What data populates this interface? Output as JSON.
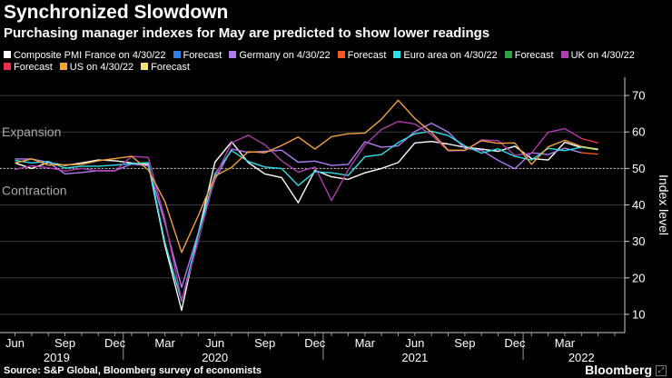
{
  "header": {
    "title": "Synchronized Slowdown",
    "subtitle": "Purchasing manager indexes for May are predicted to show lower readings"
  },
  "footer": {
    "source": "Source: S&P Global, Bloomberg survey of economists",
    "brand": "Bloomberg"
  },
  "icons": {
    "brand_mark": "expand-icon"
  },
  "chart_data": {
    "type": "line",
    "title": "Synchronized Slowdown",
    "subtitle": "Purchasing manager indexes for May are predicted to show lower readings",
    "ylabel": "Index level",
    "ylim": [
      5,
      75
    ],
    "yticks": [
      10,
      20,
      30,
      40,
      50,
      60,
      70
    ],
    "reference_line": 50,
    "annotations": [
      {
        "text": "Expansion",
        "y": 60
      },
      {
        "text": "Contraction",
        "y": 44
      }
    ],
    "x_tick_labels": [
      {
        "label": "Jun",
        "index": 0
      },
      {
        "label": "Sep",
        "index": 3
      },
      {
        "label": "Dec",
        "index": 6
      },
      {
        "label": "Mar",
        "index": 9
      },
      {
        "label": "Jun",
        "index": 12
      },
      {
        "label": "Sep",
        "index": 15
      },
      {
        "label": "Dec",
        "index": 18
      },
      {
        "label": "Mar",
        "index": 21
      },
      {
        "label": "Jun",
        "index": 24
      },
      {
        "label": "Sep",
        "index": 27
      },
      {
        "label": "Dec",
        "index": 30
      },
      {
        "label": "Mar",
        "index": 33
      }
    ],
    "year_labels": [
      {
        "label": "2019",
        "index": 2.5
      },
      {
        "label": "2020",
        "index": 12
      },
      {
        "label": "2021",
        "index": 24
      },
      {
        "label": "2022",
        "index": 34
      }
    ],
    "x_range": [
      -0.9,
      36.6
    ],
    "x_start": "Jun 2019",
    "series": [
      {
        "name": "Composite PMI France on 4/30/22",
        "color": "#ffffff",
        "start": 0,
        "values": [
          51.5,
          50.0,
          51.6,
          50.8,
          51.5,
          52.3,
          52.1,
          51.5,
          51.1,
          28.9,
          11.1,
          32.1,
          51.7,
          57.3,
          51.6,
          48.5,
          47.5,
          40.6,
          49.5,
          47.7,
          47.0,
          48.8,
          50.0,
          51.6,
          57.0,
          57.4,
          56.7,
          55.8,
          55.3,
          54.7,
          56.1,
          52.7,
          52.3,
          57.2,
          55.7
        ]
      },
      {
        "name": "Forecast",
        "color": "#2f7fe6",
        "start": 34,
        "values": [
          55.7,
          55.4
        ]
      },
      {
        "name": "Germany on 4/30/22",
        "color": "#b07af0",
        "start": 0,
        "values": [
          52.6,
          52.6,
          51.7,
          48.5,
          48.9,
          49.4,
          49.4,
          51.2,
          50.7,
          35.0,
          17.4,
          32.3,
          47.0,
          55.3,
          54.4,
          54.7,
          55.0,
          51.7,
          52.0,
          50.8,
          51.1,
          57.3,
          55.8,
          56.2,
          60.1,
          62.4,
          60.0,
          55.5,
          55.0,
          52.2,
          49.9,
          54.3,
          53.8,
          55.6,
          54.3
        ]
      },
      {
        "name": "Forecast",
        "color": "#f05a1e",
        "start": 34,
        "values": [
          54.3,
          53.9
        ]
      },
      {
        "name": "Euro area on 4/30/22",
        "color": "#2ce0e6",
        "start": 0,
        "values": [
          52.2,
          51.5,
          51.9,
          50.1,
          50.6,
          50.6,
          50.9,
          51.3,
          51.6,
          29.7,
          13.6,
          31.9,
          48.5,
          54.9,
          51.9,
          50.4,
          50.0,
          45.3,
          49.1,
          48.8,
          48.1,
          53.2,
          53.8,
          57.1,
          59.5,
          60.2,
          59.0,
          56.2,
          54.2,
          55.4,
          53.3,
          52.3,
          55.5,
          54.9,
          55.8
        ]
      },
      {
        "name": "Forecast",
        "color": "#2ea045",
        "start": 34,
        "values": [
          55.8,
          55.1
        ]
      },
      {
        "name": "UK on 4/30/22",
        "color": "#b03cae",
        "start": 0,
        "values": [
          49.7,
          50.7,
          50.2,
          49.3,
          50.0,
          49.3,
          49.3,
          53.3,
          53.0,
          36.0,
          13.8,
          30.0,
          47.7,
          57.0,
          59.1,
          56.5,
          52.1,
          49.0,
          50.4,
          41.2,
          49.6,
          56.4,
          60.7,
          62.9,
          62.2,
          59.2,
          54.8,
          54.9,
          57.8,
          57.6,
          53.6,
          54.2,
          59.9,
          60.9,
          58.2
        ]
      },
      {
        "name": "Forecast",
        "color": "#e8304a",
        "start": 34,
        "values": [
          58.2,
          57.0
        ]
      },
      {
        "name": "US on 4/30/22",
        "color": "#f2a33a",
        "start": 0,
        "values": [
          51.5,
          52.6,
          50.9,
          51.0,
          51.1,
          52.1,
          52.7,
          53.3,
          49.6,
          40.9,
          27.0,
          37.0,
          47.9,
          50.3,
          54.6,
          54.3,
          56.3,
          58.6,
          55.3,
          58.7,
          59.5,
          59.7,
          63.5,
          68.7,
          63.7,
          59.9,
          55.0,
          55.0,
          57.6,
          56.9,
          57.0,
          51.1,
          55.9,
          57.7,
          56.0
        ]
      },
      {
        "name": "Forecast",
        "color": "#f5e270",
        "start": 34,
        "values": [
          56.0,
          55.2
        ]
      }
    ]
  }
}
